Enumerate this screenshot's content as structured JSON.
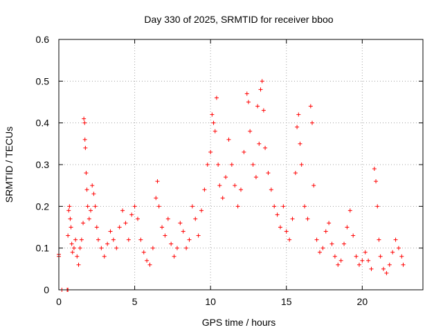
{
  "chart_data": {
    "type": "scatter",
    "title": "Day 330 of 2025, SRMTID for receiver bboo",
    "xlabel": "GPS time / hours",
    "ylabel": "SRMTID / TECUs",
    "xlim": [
      0,
      24
    ],
    "ylim": [
      0,
      0.6
    ],
    "xticks": [
      0,
      5,
      10,
      15,
      20
    ],
    "xtick_labels": [
      "0",
      "5",
      "10",
      "15",
      "20"
    ],
    "yticks": [
      0,
      0.1,
      0.2,
      0.3,
      0.4,
      0.5,
      0.6
    ],
    "ytick_labels": [
      "0",
      "0.1",
      "0.2",
      "0.3",
      "0.4",
      "0.5",
      "0.6"
    ],
    "grid": true,
    "marker": "plus",
    "color": "#ff0000",
    "series": [
      {
        "name": "SRMTID",
        "points": [
          [
            0.0,
            0.085
          ],
          [
            0.0,
            0.08
          ],
          [
            0.2,
            0.0
          ],
          [
            0.55,
            0.0
          ],
          [
            0.6,
            0.0
          ],
          [
            0.6,
            0.13
          ],
          [
            0.65,
            0.19
          ],
          [
            0.7,
            0.2
          ],
          [
            0.75,
            0.17
          ],
          [
            0.8,
            0.15
          ],
          [
            0.85,
            0.11
          ],
          [
            0.9,
            0.09
          ],
          [
            1.0,
            0.1
          ],
          [
            1.1,
            0.12
          ],
          [
            1.2,
            0.08
          ],
          [
            1.3,
            0.06
          ],
          [
            1.4,
            0.1
          ],
          [
            1.5,
            0.12
          ],
          [
            1.6,
            0.16
          ],
          [
            1.65,
            0.41
          ],
          [
            1.7,
            0.4
          ],
          [
            1.72,
            0.36
          ],
          [
            1.75,
            0.34
          ],
          [
            1.8,
            0.28
          ],
          [
            1.85,
            0.24
          ],
          [
            1.9,
            0.2
          ],
          [
            2.0,
            0.17
          ],
          [
            2.1,
            0.19
          ],
          [
            2.2,
            0.25
          ],
          [
            2.3,
            0.23
          ],
          [
            2.4,
            0.2
          ],
          [
            2.5,
            0.15
          ],
          [
            2.6,
            0.12
          ],
          [
            2.8,
            0.1
          ],
          [
            3.0,
            0.08
          ],
          [
            3.2,
            0.11
          ],
          [
            3.4,
            0.14
          ],
          [
            3.6,
            0.12
          ],
          [
            3.8,
            0.1
          ],
          [
            4.0,
            0.15
          ],
          [
            4.2,
            0.19
          ],
          [
            4.4,
            0.16
          ],
          [
            4.6,
            0.12
          ],
          [
            4.8,
            0.18
          ],
          [
            5.0,
            0.2
          ],
          [
            5.2,
            0.17
          ],
          [
            5.4,
            0.12
          ],
          [
            5.6,
            0.09
          ],
          [
            5.8,
            0.07
          ],
          [
            6.0,
            0.06
          ],
          [
            6.2,
            0.1
          ],
          [
            6.4,
            0.22
          ],
          [
            6.5,
            0.26
          ],
          [
            6.6,
            0.2
          ],
          [
            6.8,
            0.15
          ],
          [
            7.0,
            0.13
          ],
          [
            7.2,
            0.17
          ],
          [
            7.4,
            0.11
          ],
          [
            7.6,
            0.08
          ],
          [
            7.8,
            0.1
          ],
          [
            8.0,
            0.16
          ],
          [
            8.2,
            0.14
          ],
          [
            8.4,
            0.1
          ],
          [
            8.6,
            0.12
          ],
          [
            8.8,
            0.2
          ],
          [
            9.0,
            0.17
          ],
          [
            9.2,
            0.13
          ],
          [
            9.4,
            0.19
          ],
          [
            9.6,
            0.24
          ],
          [
            9.8,
            0.3
          ],
          [
            10.0,
            0.33
          ],
          [
            10.1,
            0.42
          ],
          [
            10.2,
            0.4
          ],
          [
            10.3,
            0.38
          ],
          [
            10.4,
            0.46
          ],
          [
            10.5,
            0.3
          ],
          [
            10.6,
            0.25
          ],
          [
            10.8,
            0.22
          ],
          [
            11.0,
            0.27
          ],
          [
            11.2,
            0.36
          ],
          [
            11.4,
            0.3
          ],
          [
            11.6,
            0.25
          ],
          [
            11.8,
            0.2
          ],
          [
            12.0,
            0.24
          ],
          [
            12.2,
            0.33
          ],
          [
            12.4,
            0.47
          ],
          [
            12.5,
            0.45
          ],
          [
            12.6,
            0.38
          ],
          [
            12.8,
            0.3
          ],
          [
            13.0,
            0.27
          ],
          [
            13.1,
            0.44
          ],
          [
            13.2,
            0.35
          ],
          [
            13.3,
            0.48
          ],
          [
            13.4,
            0.5
          ],
          [
            13.5,
            0.43
          ],
          [
            13.6,
            0.34
          ],
          [
            13.8,
            0.28
          ],
          [
            14.0,
            0.24
          ],
          [
            14.2,
            0.2
          ],
          [
            14.4,
            0.18
          ],
          [
            14.6,
            0.15
          ],
          [
            14.8,
            0.2
          ],
          [
            15.0,
            0.14
          ],
          [
            15.2,
            0.12
          ],
          [
            15.4,
            0.17
          ],
          [
            15.6,
            0.28
          ],
          [
            15.7,
            0.39
          ],
          [
            15.8,
            0.42
          ],
          [
            15.9,
            0.35
          ],
          [
            16.0,
            0.3
          ],
          [
            16.2,
            0.2
          ],
          [
            16.4,
            0.17
          ],
          [
            16.6,
            0.44
          ],
          [
            16.7,
            0.4
          ],
          [
            16.8,
            0.25
          ],
          [
            17.0,
            0.12
          ],
          [
            17.2,
            0.09
          ],
          [
            17.4,
            0.1
          ],
          [
            17.6,
            0.14
          ],
          [
            17.8,
            0.16
          ],
          [
            18.0,
            0.11
          ],
          [
            18.2,
            0.08
          ],
          [
            18.4,
            0.06
          ],
          [
            18.6,
            0.07
          ],
          [
            18.8,
            0.11
          ],
          [
            19.0,
            0.15
          ],
          [
            19.2,
            0.19
          ],
          [
            19.4,
            0.13
          ],
          [
            19.6,
            0.08
          ],
          [
            19.8,
            0.06
          ],
          [
            20.0,
            0.07
          ],
          [
            20.2,
            0.09
          ],
          [
            20.4,
            0.07
          ],
          [
            20.6,
            0.05
          ],
          [
            20.8,
            0.29
          ],
          [
            20.9,
            0.26
          ],
          [
            21.0,
            0.2
          ],
          [
            21.1,
            0.12
          ],
          [
            21.2,
            0.08
          ],
          [
            21.4,
            0.05
          ],
          [
            21.6,
            0.04
          ],
          [
            21.8,
            0.06
          ],
          [
            22.0,
            0.09
          ],
          [
            22.2,
            0.12
          ],
          [
            22.4,
            0.1
          ],
          [
            22.6,
            0.08
          ],
          [
            22.7,
            0.06
          ]
        ]
      }
    ]
  }
}
